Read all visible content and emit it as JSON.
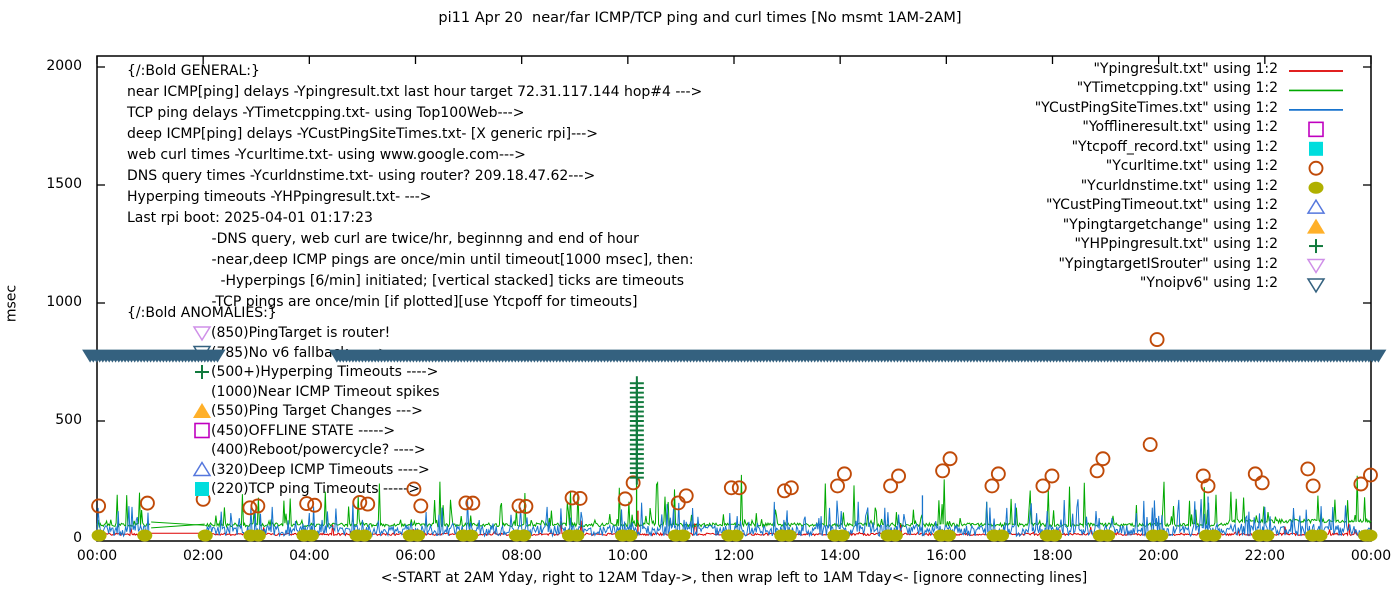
{
  "title": "pi11 Apr 20  near/far ICMP/TCP ping and curl times [No msmt 1AM-2AM]",
  "axes": {
    "ylabel": "msec",
    "xlabel": "<-START at 2AM Yday, right to 12AM Tday->, then wrap left to 1AM Tday<- [ignore connecting lines]",
    "y_ticks": [
      "0",
      "500",
      "1000",
      "1500",
      "2000"
    ],
    "x_ticks": [
      "00:00",
      "02:00",
      "04:00",
      "06:00",
      "08:00",
      "10:00",
      "12:00",
      "14:00",
      "16:00",
      "18:00",
      "20:00",
      "22:00",
      "00:00"
    ]
  },
  "annotations": {
    "general": {
      "lines": [
        "{/:Bold GENERAL:}",
        "near ICMP[ping] delays -Ypingresult.txt last hour target 72.31.117.144 hop#4 --->",
        "TCP ping delays -YTimetcpping.txt- using Top100Web--->",
        "deep ICMP[ping] delays -YCustPingSiteTimes.txt- [X generic rpi]--->",
        "web curl times -Ycurltime.txt- using www.google.com--->",
        "DNS query times -Ycurldnstime.txt- using router? 209.18.47.62--->",
        "Hyperping timeouts -YHPpingresult.txt- --->",
        "Last rpi boot: 2025-04-01 01:17:23",
        "                   -DNS query, web curl are twice/hr, beginnng and end of hour",
        "                   -near,deep ICMP pings are once/min until timeout[1000 msec], then:",
        "                     -Hyperpings [6/min] initiated; [vertical stacked] ticks are timeouts",
        "                   -TCP pings are once/min [if plotted][use Ytcpoff for timeouts]"
      ]
    },
    "anomalies": {
      "header": "{/:Bold ANOMALIES:}",
      "items": [
        {
          "marker": "tri-down",
          "color": "#cf8fe8",
          "text": "(850)PingTarget is router!"
        },
        {
          "marker": "tri-down",
          "color": "#34617f",
          "text": "(785)No v6 fallback ----->",
          "hidden_behind_band": true
        },
        {
          "marker": "plus",
          "color": "#117a3d",
          "text": "(500+)Hyperping Timeouts ---->"
        },
        {
          "marker": "none",
          "color": "#000000",
          "text": "(1000)Near ICMP Timeout spikes"
        },
        {
          "marker": "tri-up-fill",
          "color": "#ffb029",
          "text": "(550)Ping Target Changes --->"
        },
        {
          "marker": "square",
          "color": "#c000c0",
          "text": "(450)OFFLINE STATE ----->"
        },
        {
          "marker": "none",
          "color": "#000000",
          "text": "(400)Reboot/powercycle? ---->"
        },
        {
          "marker": "tri-up",
          "color": "#5577dd",
          "text": "(320)Deep ICMP Timeouts ---->"
        },
        {
          "marker": "square-fill",
          "color": "#00dddd",
          "text": "(220)TCP ping Timeouts ----->"
        }
      ]
    }
  },
  "chart_data": {
    "type": "line",
    "title": "pi11 Apr 20  near/far ICMP/TCP ping and curl times [No msmt 1AM-2AM]",
    "xlabel": "<-START at 2AM Yday, right to 12AM Tday->, then wrap left to 1AM Tday<- [ignore connecting lines]",
    "ylabel": "msec",
    "x_range_hours": [
      0,
      24
    ],
    "ylim": [
      0,
      2000
    ],
    "grid": false,
    "legend_position": "top-right",
    "no_measurement_gap_hours": [
      1.02,
      2.03
    ],
    "series": [
      {
        "name": "Ypingresult.txt",
        "legend_label": "\"Ypingresult.txt\" using 1:2",
        "style": "line",
        "color": "#dd0000",
        "noise": {
          "base": 15,
          "jitter": 10,
          "spike_p": 0.03,
          "spike_base": 28,
          "spike_add": 55,
          "gap_value": 24
        },
        "impulses": [
          [
            10.19,
            120
          ]
        ],
        "seed": 7
      },
      {
        "name": "YTimetcpping.txt",
        "legend_label": "\"YTimetcpping.txt\" using 1:2",
        "style": "line",
        "color": "#00a800",
        "noise": {
          "base": 52,
          "jitter": 16,
          "spike_p": 0.1,
          "spike_base": 75,
          "spike_add": 185,
          "rare_p": 0.006,
          "rare_add": 215,
          "gap_value": null,
          "step_zone": [
            21.3,
            24,
            16
          ]
        },
        "gap_lines": [
          [
            1.02,
            72,
            2.03,
            58
          ],
          [
            1.02,
            47,
            2.03,
            63
          ]
        ],
        "impulses": [
          [
            10.165,
            480
          ]
        ],
        "seed": 13
      },
      {
        "name": "YCustPingSiteTimes.txt",
        "legend_label": "\"YCustPingSiteTimes.txt\" using 1:2",
        "style": "line",
        "color": "#1874cd",
        "noise": {
          "base": 12,
          "jitter": 45,
          "spike_p": 0.17,
          "spike_base": 55,
          "spike_add": 115,
          "gap_value": null
        },
        "impulses": [
          [
            15.55,
            185
          ],
          [
            20.93,
            180
          ]
        ],
        "seed": 99
      },
      {
        "name": "Yofflineresult.txt",
        "legend_label": "\"Yofflineresult.txt\" using 1:2",
        "style": "square",
        "color": "#c000c0",
        "points": []
      },
      {
        "name": "Ytcpoff_record.txt",
        "legend_label": "\"Ytcpoff_record.txt\" using 1:2",
        "style": "square-fill",
        "color": "#00dddd",
        "points": []
      },
      {
        "name": "Ycurltime.txt",
        "legend_label": "\"Ycurltime.txt\" using 1:2",
        "style": "circle",
        "color": "#c04a08",
        "points": [
          [
            0.03,
            140
          ],
          [
            0.95,
            152
          ],
          [
            2.0,
            168
          ],
          [
            2.88,
            132
          ],
          [
            3.03,
            140
          ],
          [
            3.95,
            150
          ],
          [
            4.1,
            143
          ],
          [
            4.95,
            155
          ],
          [
            5.1,
            148
          ],
          [
            5.97,
            212
          ],
          [
            6.1,
            140
          ],
          [
            6.95,
            153
          ],
          [
            7.08,
            152
          ],
          [
            7.95,
            140
          ],
          [
            8.08,
            138
          ],
          [
            8.95,
            174
          ],
          [
            9.1,
            172
          ],
          [
            9.95,
            170
          ],
          [
            10.1,
            238
          ],
          [
            10.95,
            153
          ],
          [
            11.1,
            183
          ],
          [
            11.95,
            217
          ],
          [
            12.1,
            217
          ],
          [
            12.95,
            204
          ],
          [
            13.08,
            217
          ],
          [
            13.95,
            225
          ],
          [
            14.08,
            276
          ],
          [
            14.95,
            225
          ],
          [
            15.1,
            267
          ],
          [
            15.93,
            289
          ],
          [
            16.07,
            340
          ],
          [
            16.86,
            225
          ],
          [
            16.98,
            276
          ],
          [
            17.82,
            225
          ],
          [
            17.99,
            267
          ],
          [
            18.84,
            289
          ],
          [
            18.95,
            340
          ],
          [
            19.84,
            400
          ],
          [
            19.97,
            845
          ],
          [
            20.84,
            267
          ],
          [
            20.93,
            225
          ],
          [
            21.82,
            276
          ],
          [
            21.95,
            238
          ],
          [
            22.81,
            297
          ],
          [
            22.91,
            225
          ],
          [
            23.81,
            233
          ],
          [
            23.99,
            271
          ]
        ]
      },
      {
        "name": "Ycurldnstime.txt",
        "legend_label": "\"Ycurldnstime.txt\" using 1:2",
        "style": "circle-fill",
        "color": "#b0b000",
        "points_pattern": {
          "hours_from": 0,
          "hours_to": 23,
          "skip_hours": [
            1
          ],
          "offsets": [
            0.04,
            0.9
          ],
          "value": 15
        },
        "extra_points": [
          [
            23.98,
            15
          ]
        ]
      },
      {
        "name": "YCustPingTimeout.txt",
        "legend_label": "\"YCustPingTimeout.txt\" using 1:2",
        "style": "tri-up",
        "color": "#5577dd",
        "points": []
      },
      {
        "name": "Ypingtargetchange",
        "legend_label": "\"Ypingtargetchange\" using 1:2",
        "style": "tri-up-fill",
        "color": "#ffb029",
        "points": []
      },
      {
        "name": "YHPpingresult.txt",
        "legend_label": "\"YHPpingresult.txt\" using 1:2",
        "style": "plus",
        "color": "#117a3d",
        "stack": {
          "t": 10.17,
          "v_from": 260,
          "v_to": 660,
          "step": 20
        }
      },
      {
        "name": "YpingtargetISrouter",
        "legend_label": "\"YpingtargetISrouter\" using 1:2",
        "style": "tri-down",
        "color": "#cf8fe8",
        "points": []
      },
      {
        "name": "Ynoipv6",
        "legend_label": "\"Ynoipv6\" using 1:2",
        "style": "tri-down-band",
        "color": "#34617f",
        "band": {
          "value": 775,
          "segments_hours": [
            [
              -0.13,
              2.28
            ],
            [
              4.52,
              24.15
            ]
          ],
          "marker_spacing_hours": 0.06
        }
      }
    ]
  }
}
